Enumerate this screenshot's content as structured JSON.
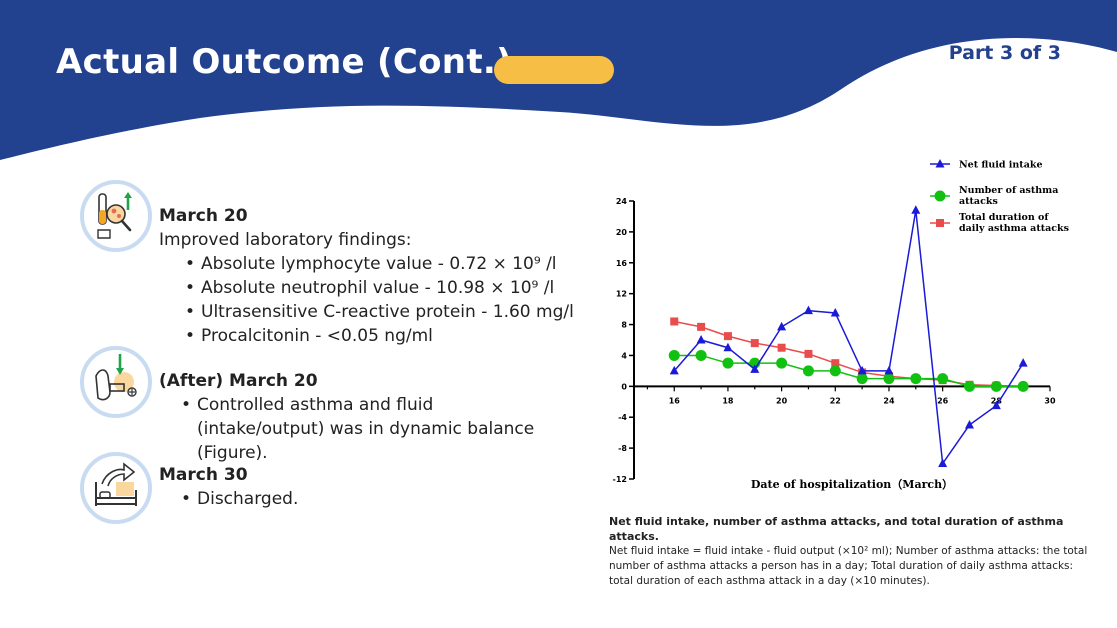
{
  "header": {
    "title": "Actual Outcome (Cont.)",
    "part": "Part 3 of 3"
  },
  "colors": {
    "navy": "#22418e",
    "accent": "#f7be45",
    "icon_ring": "#c8dbf1"
  },
  "events": [
    {
      "icon": "lab-test-icon",
      "date": "March 20",
      "intro": "Improved laboratory findings:",
      "bullets": [
        "Absolute lymphocyte value - 0.72 × 10⁹ /l",
        "Absolute neutrophil value - 10.98 × 10⁹ /l",
        "Ultrasensitive C-reactive protein - 1.60 mg/l",
        "Procalcitonin - <0.05 ng/ml"
      ]
    },
    {
      "icon": "inhaler-hand-icon",
      "date": "(After) March 20",
      "bullets": [
        "Controlled asthma and fluid (intake/output) was in dynamic balance (Figure)."
      ]
    },
    {
      "icon": "hospital-bed-discharge-icon",
      "date": "March 30",
      "bullets": [
        "Discharged."
      ]
    }
  ],
  "chart_data": {
    "type": "line",
    "xlabel": "Date of hospitalization（March）",
    "ylabel": "",
    "xlim": [
      14.5,
      30
    ],
    "ylim": [
      -12,
      24
    ],
    "xticks": [
      16,
      18,
      20,
      22,
      24,
      26,
      28,
      30
    ],
    "yticks": [
      -12,
      -8,
      -4,
      0,
      4,
      8,
      12,
      16,
      20,
      24
    ],
    "grid": false,
    "legend_position": "top-right",
    "series": [
      {
        "name": "Net fluid intake",
        "marker": "triangle",
        "color": "#1a1ad8",
        "x": [
          16,
          17,
          18,
          19,
          20,
          21,
          22,
          23,
          24,
          25,
          26,
          27,
          28,
          29
        ],
        "y": [
          2,
          6,
          5,
          2.2,
          7.7,
          9.8,
          9.5,
          2,
          2,
          22.8,
          -10,
          -5,
          -2.5,
          3
        ]
      },
      {
        "name": "Number of asthma attacks",
        "marker": "circle",
        "color": "#11c011",
        "x": [
          16,
          17,
          18,
          19,
          20,
          21,
          22,
          23,
          24,
          25,
          26,
          27,
          28,
          29
        ],
        "y": [
          4,
          4,
          3,
          3,
          3,
          2,
          2,
          1,
          1,
          1,
          1,
          0,
          0,
          0
        ]
      },
      {
        "name": "Total duration of daily asthma attacks",
        "marker": "square",
        "color": "#e84c4c",
        "x": [
          16,
          17,
          18,
          19,
          20,
          21,
          22,
          23,
          24,
          25,
          26,
          27,
          28,
          29
        ],
        "y": [
          8.4,
          7.7,
          6.5,
          5.6,
          5,
          4.2,
          3,
          1.8,
          1.3,
          1,
          0.8,
          0.2,
          0.1,
          0
        ]
      }
    ]
  },
  "caption": {
    "title": "Net fluid intake, number of asthma attacks, and total duration of asthma attacks.",
    "body": "Net fluid intake = fluid intake - fluid output (×10² ml); Number of asthma attacks: the total number of asthma attacks a person has in a day; Total duration of daily asthma attacks: total duration of each asthma attack in a day (×10 minutes)."
  }
}
